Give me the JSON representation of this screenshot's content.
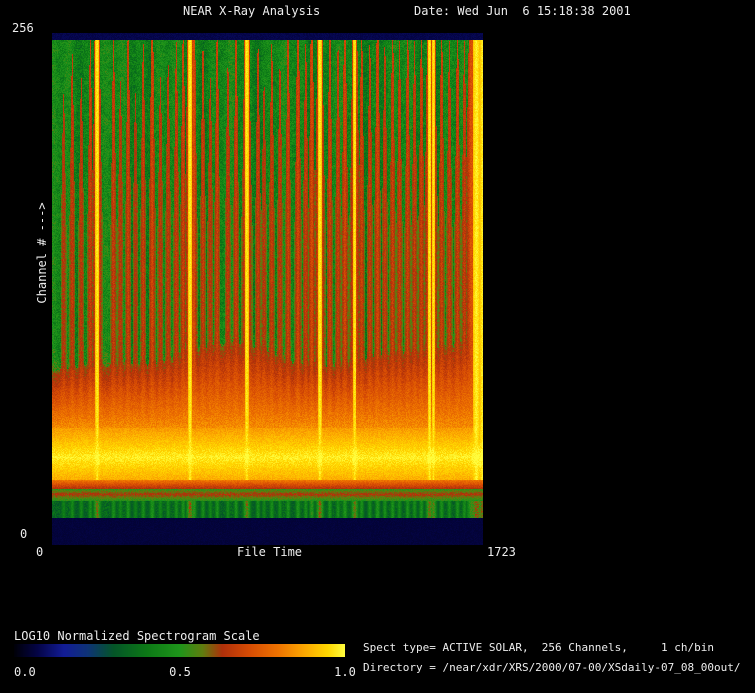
{
  "header": {
    "title": "NEAR X-Ray Analysis",
    "date": "Date: Wed Jun  6 15:18:38 2001"
  },
  "plot": {
    "y_axis": {
      "label": "Channel # --->",
      "max": "256",
      "min": "0"
    },
    "x_axis": {
      "label": "File Time",
      "min": "0",
      "max": "1723"
    }
  },
  "colorbar": {
    "label": "LOG10 Normalized Spectrogram Scale",
    "ticks": [
      "0.0",
      "0.5",
      "1.0"
    ]
  },
  "info": {
    "line1": "Spect type= ACTIVE SOLAR,  256 Channels,     1 ch/bin",
    "line2": "Directory = /near/xdr/XRS/2000/07-00/XSdaily-07_08_00out/"
  },
  "chart_data": {
    "type": "heatmap",
    "title": "NEAR X-Ray Analysis",
    "xlabel": "File Time",
    "ylabel": "Channel #",
    "xlim": [
      0,
      1723
    ],
    "ylim": [
      0,
      256
    ],
    "grid": false,
    "colorbar": {
      "label": "LOG10 Normalized Spectrogram Scale",
      "ticks": [
        0.0,
        0.5,
        1.0
      ]
    },
    "description": "Normalized X-ray spectrogram: low channels saturated (yellow/orange band), mid-level green background, vertical red/yellow streaks are solar flare events; dark navy bands at top and bottom channel ranges.",
    "colormap_stops": [
      [
        0.0,
        0,
        0,
        8
      ],
      [
        0.07,
        4,
        4,
        70
      ],
      [
        0.15,
        18,
        28,
        150
      ],
      [
        0.22,
        14,
        50,
        120
      ],
      [
        0.3,
        4,
        85,
        40
      ],
      [
        0.4,
        12,
        120,
        22
      ],
      [
        0.5,
        30,
        148,
        26
      ],
      [
        0.57,
        95,
        125,
        15
      ],
      [
        0.63,
        175,
        48,
        10
      ],
      [
        0.71,
        214,
        75,
        4
      ],
      [
        0.8,
        238,
        115,
        0
      ],
      [
        0.88,
        252,
        168,
        0
      ],
      [
        0.95,
        255,
        215,
        0
      ],
      [
        1.0,
        255,
        252,
        60
      ]
    ],
    "render": {
      "seed": 7,
      "band": {
        "base": 322,
        "amp": 28
      },
      "flares": [
        {
          "t": 0.026,
          "w": 1.6,
          "s": 0.42
        },
        {
          "t": 0.046,
          "w": 1.6,
          "s": 0.52
        },
        {
          "t": 0.067,
          "w": 1.6,
          "s": 0.46
        },
        {
          "t": 0.088,
          "w": 1.6,
          "s": 0.56
        },
        {
          "t": 0.104,
          "w": 2.6,
          "s": 0.95
        },
        {
          "t": 0.142,
          "w": 1.6,
          "s": 0.56
        },
        {
          "t": 0.158,
          "w": 1.6,
          "s": 0.45
        },
        {
          "t": 0.176,
          "w": 1.6,
          "s": 0.6
        },
        {
          "t": 0.193,
          "w": 1.6,
          "s": 0.42
        },
        {
          "t": 0.211,
          "w": 1.6,
          "s": 0.55
        },
        {
          "t": 0.232,
          "w": 1.8,
          "s": 0.66
        },
        {
          "t": 0.251,
          "w": 1.6,
          "s": 0.46
        },
        {
          "t": 0.269,
          "w": 1.6,
          "s": 0.5
        },
        {
          "t": 0.288,
          "w": 1.6,
          "s": 0.55
        },
        {
          "t": 0.304,
          "w": 1.6,
          "s": 0.6
        },
        {
          "t": 0.32,
          "w": 2.6,
          "s": 1.0
        },
        {
          "t": 0.329,
          "w": 1.8,
          "s": 0.72
        },
        {
          "t": 0.35,
          "w": 1.6,
          "s": 0.55
        },
        {
          "t": 0.367,
          "w": 1.6,
          "s": 0.46
        },
        {
          "t": 0.383,
          "w": 1.6,
          "s": 0.6
        },
        {
          "t": 0.408,
          "w": 1.6,
          "s": 0.5
        },
        {
          "t": 0.427,
          "w": 1.6,
          "s": 0.6
        },
        {
          "t": 0.452,
          "w": 2.6,
          "s": 0.93
        },
        {
          "t": 0.478,
          "w": 1.6,
          "s": 0.55
        },
        {
          "t": 0.492,
          "w": 1.6,
          "s": 0.45
        },
        {
          "t": 0.51,
          "w": 1.6,
          "s": 0.55
        },
        {
          "t": 0.529,
          "w": 1.6,
          "s": 0.5
        },
        {
          "t": 0.548,
          "w": 1.6,
          "s": 0.6
        },
        {
          "t": 0.571,
          "w": 1.8,
          "s": 0.66
        },
        {
          "t": 0.589,
          "w": 1.6,
          "s": 0.55
        },
        {
          "t": 0.603,
          "w": 1.8,
          "s": 0.7
        },
        {
          "t": 0.622,
          "w": 2.6,
          "s": 0.98
        },
        {
          "t": 0.645,
          "w": 1.6,
          "s": 0.6
        },
        {
          "t": 0.664,
          "w": 1.6,
          "s": 0.55
        },
        {
          "t": 0.68,
          "w": 1.8,
          "s": 0.66
        },
        {
          "t": 0.703,
          "w": 2.6,
          "s": 0.9
        },
        {
          "t": 0.719,
          "w": 1.6,
          "s": 0.6
        },
        {
          "t": 0.738,
          "w": 1.6,
          "s": 0.55
        },
        {
          "t": 0.756,
          "w": 1.8,
          "s": 0.65
        },
        {
          "t": 0.773,
          "w": 1.6,
          "s": 0.55
        },
        {
          "t": 0.791,
          "w": 1.6,
          "s": 0.6
        },
        {
          "t": 0.807,
          "w": 1.6,
          "s": 0.55
        },
        {
          "t": 0.826,
          "w": 1.6,
          "s": 0.6
        },
        {
          "t": 0.842,
          "w": 1.6,
          "s": 0.55
        },
        {
          "t": 0.858,
          "w": 1.6,
          "s": 0.6
        },
        {
          "t": 0.877,
          "w": 2.6,
          "s": 0.95
        },
        {
          "t": 0.886,
          "w": 2.2,
          "s": 0.86
        },
        {
          "t": 0.905,
          "w": 1.6,
          "s": 0.6
        },
        {
          "t": 0.923,
          "w": 1.6,
          "s": 0.55
        },
        {
          "t": 0.942,
          "w": 1.6,
          "s": 0.6
        },
        {
          "t": 0.958,
          "w": 1.6,
          "s": 0.55
        },
        {
          "t": 0.975,
          "w": 3.5,
          "s": 0.8
        },
        {
          "t": 0.986,
          "w": 5.0,
          "s": 1.0
        },
        {
          "t": 1.0,
          "w": 4.0,
          "s": 0.95
        }
      ]
    }
  }
}
